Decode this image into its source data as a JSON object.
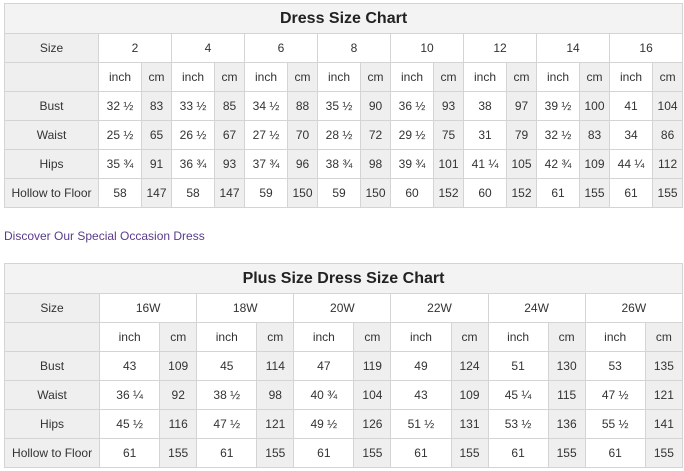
{
  "chart1": {
    "title": "Dress Size Chart",
    "size_label": "Size",
    "sizes": [
      "2",
      "4",
      "6",
      "8",
      "10",
      "12",
      "14",
      "16"
    ],
    "units": [
      "inch",
      "cm"
    ],
    "rows": [
      {
        "label": "Bust",
        "values": [
          "32 ½",
          "83",
          "33 ½",
          "85",
          "34 ½",
          "88",
          "35 ½",
          "90",
          "36 ½",
          "93",
          "38",
          "97",
          "39 ½",
          "100",
          "41",
          "104"
        ]
      },
      {
        "label": "Waist",
        "values": [
          "25 ½",
          "65",
          "26 ½",
          "67",
          "27 ½",
          "70",
          "28 ½",
          "72",
          "29 ½",
          "75",
          "31",
          "79",
          "32 ½",
          "83",
          "34",
          "86"
        ]
      },
      {
        "label": "Hips",
        "values": [
          "35 ¾",
          "91",
          "36 ¾",
          "93",
          "37 ¾",
          "96",
          "38 ¾",
          "98",
          "39 ¾",
          "101",
          "41 ¼",
          "105",
          "42 ¾",
          "109",
          "44 ¼",
          "112"
        ]
      },
      {
        "label": "Hollow to Floor",
        "values": [
          "58",
          "147",
          "58",
          "147",
          "59",
          "150",
          "59",
          "150",
          "60",
          "152",
          "60",
          "152",
          "61",
          "155",
          "61",
          "155"
        ]
      }
    ]
  },
  "link_text": "Discover Our Special Occasion Dress",
  "chart2": {
    "title": "Plus Size Dress Size Chart",
    "size_label": "Size",
    "sizes": [
      "16W",
      "18W",
      "20W",
      "22W",
      "24W",
      "26W"
    ],
    "units": [
      "inch",
      "cm"
    ],
    "rows": [
      {
        "label": "Bust",
        "values": [
          "43",
          "109",
          "45",
          "114",
          "47",
          "119",
          "49",
          "124",
          "51",
          "130",
          "53",
          "135"
        ]
      },
      {
        "label": "Waist",
        "values": [
          "36 ¼",
          "92",
          "38 ½",
          "98",
          "40 ¾",
          "104",
          "43",
          "109",
          "45 ¼",
          "115",
          "47 ½",
          "121"
        ]
      },
      {
        "label": "Hips",
        "values": [
          "45 ½",
          "116",
          "47 ½",
          "121",
          "49 ½",
          "126",
          "51 ½",
          "131",
          "53 ½",
          "136",
          "55 ½",
          "141"
        ]
      },
      {
        "label": "Hollow to Floor",
        "values": [
          "61",
          "155",
          "61",
          "155",
          "61",
          "155",
          "61",
          "155",
          "61",
          "155",
          "61",
          "155"
        ]
      }
    ]
  }
}
